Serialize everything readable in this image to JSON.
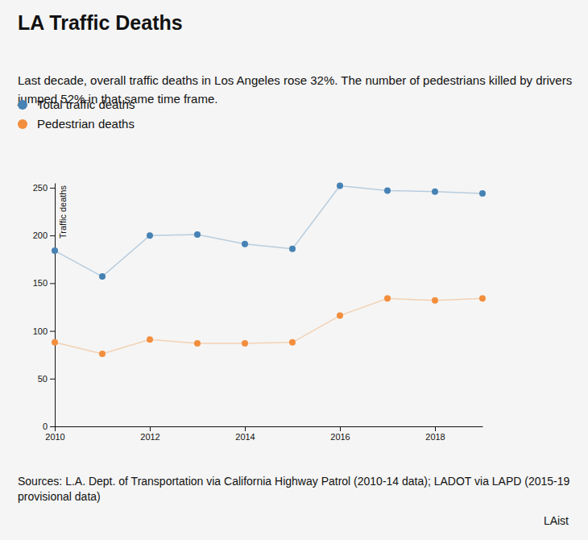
{
  "chart_data": {
    "type": "line",
    "title": "LA Traffic Deaths",
    "subtitle": "Last decade, overall traffic deaths in Los Angeles rose 32%. The number of pedestrians killed by drivers jumped 52% in that same time frame.",
    "y_label": "Traffic deaths",
    "source": "Sources: L.A. Dept. of Transportation via California Highway Patrol (2010-14 data); LADOT via LAPD (2015-19 provisional data)",
    "credit": "LAist",
    "x": [
      2010,
      2011,
      2012,
      2013,
      2014,
      2015,
      2016,
      2017,
      2018,
      2019
    ],
    "series": [
      {
        "name": "Total traffic deaths",
        "color": "#4682b4",
        "values": [
          184,
          157,
          200,
          201,
          191,
          186,
          252,
          247,
          246,
          244
        ]
      },
      {
        "name": "Pedestrian deaths",
        "color": "#f28e3c",
        "values": [
          88,
          76,
          91,
          87,
          87,
          88,
          116,
          134,
          132,
          134
        ]
      }
    ],
    "xlim": [
      2010,
      2019
    ],
    "xticks": [
      2010,
      2012,
      2014,
      2016,
      2018
    ],
    "ylim": [
      0,
      255
    ],
    "yticks": [
      0,
      50,
      100,
      150,
      200,
      250
    ],
    "marker": "circle",
    "legend": "top-left",
    "grid": false
  }
}
